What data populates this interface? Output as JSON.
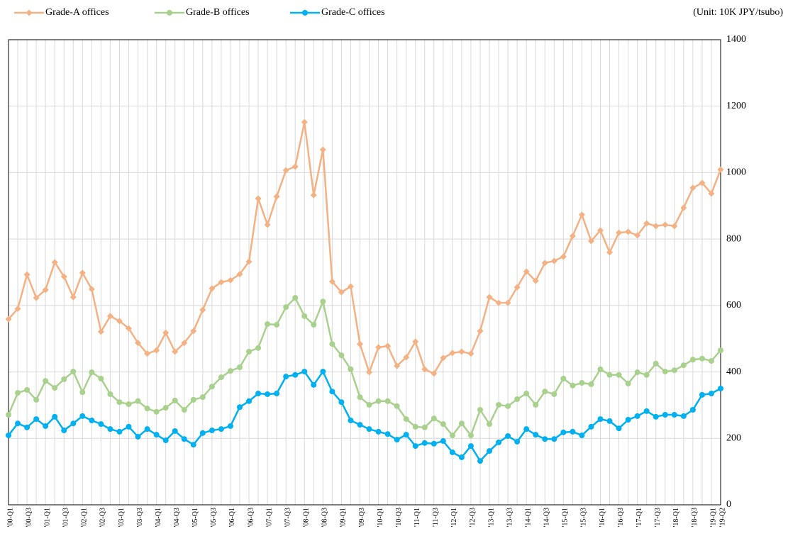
{
  "chart_data": {
    "type": "line",
    "unit_note": "(Unit: 10K JPY/tsubo)",
    "categories": [
      "'00-Q1",
      null,
      "'00-Q3",
      null,
      "'01-Q1",
      null,
      "'01-Q3",
      null,
      "'02-Q1",
      null,
      "'02-Q3",
      null,
      "'03-Q1",
      null,
      "'03-Q3",
      null,
      "'04-Q1",
      null,
      "'04-Q3",
      null,
      "'05-Q1",
      null,
      "'05-Q3",
      null,
      "'06-Q1",
      null,
      "'06-Q3",
      null,
      "'07-Q1",
      null,
      "'07-Q3",
      null,
      "'08-Q1",
      null,
      "'08-Q3",
      null,
      "'09-Q1",
      null,
      "'09-Q3",
      null,
      "'10-Q1",
      null,
      "'10-Q3",
      null,
      "'11-Q1",
      null,
      "'11-Q3",
      null,
      "'12-Q1",
      null,
      "'12-Q3",
      null,
      "'13-Q1",
      null,
      "'13-Q3",
      null,
      "'14-Q1",
      null,
      "'14-Q3",
      null,
      "'15-Q1",
      null,
      "'15-Q3",
      null,
      "'16-Q1",
      null,
      "'16-Q3",
      null,
      "'17-Q1",
      null,
      "'17-Q3",
      null,
      "'18-Q1",
      null,
      "'18-Q3",
      null,
      "'19-Q1",
      "'19-Q2"
    ],
    "series": [
      {
        "name": "Grade-A offices",
        "color": "#f4b183",
        "marker": "diamond",
        "values": [
          559,
          590,
          693,
          623,
          647,
          730,
          687,
          625,
          698,
          649,
          521,
          568,
          553,
          531,
          487,
          455,
          465,
          518,
          461,
          487,
          523,
          587,
          651,
          670,
          676,
          694,
          732,
          922,
          843,
          928,
          1007,
          1018,
          1152,
          932,
          1069,
          672,
          640,
          657,
          484,
          399,
          474,
          478,
          418,
          444,
          491,
          408,
          395,
          442,
          457,
          461,
          455,
          523,
          625,
          608,
          608,
          655,
          702,
          674,
          728,
          734,
          747,
          809,
          873,
          794,
          826,
          760,
          819,
          822,
          811,
          847,
          839,
          843,
          839,
          894,
          954,
          969,
          937,
          1009
        ]
      },
      {
        "name": "Grade-B offices",
        "color": "#a9d18e",
        "marker": "circle",
        "values": [
          271,
          337,
          346,
          316,
          373,
          352,
          378,
          401,
          339,
          399,
          380,
          333,
          309,
          303,
          312,
          290,
          280,
          292,
          314,
          286,
          316,
          324,
          356,
          384,
          403,
          414,
          461,
          472,
          544,
          542,
          595,
          623,
          568,
          542,
          612,
          484,
          450,
          408,
          324,
          301,
          312,
          312,
          297,
          258,
          235,
          233,
          260,
          243,
          209,
          245,
          209,
          286,
          243,
          301,
          297,
          318,
          335,
          301,
          341,
          333,
          380,
          359,
          367,
          363,
          408,
          391,
          391,
          365,
          399,
          391,
          425,
          401,
          405,
          420,
          437,
          440,
          433,
          465
        ]
      },
      {
        "name": "Grade-C offices",
        "color": "#00b0f0",
        "marker": "circle",
        "values": [
          209,
          245,
          233,
          258,
          237,
          265,
          224,
          245,
          267,
          254,
          243,
          228,
          220,
          235,
          205,
          228,
          211,
          194,
          222,
          198,
          181,
          216,
          224,
          228,
          237,
          294,
          312,
          335,
          333,
          335,
          386,
          391,
          401,
          361,
          401,
          341,
          309,
          254,
          241,
          228,
          220,
          213,
          196,
          211,
          177,
          186,
          184,
          192,
          158,
          143,
          177,
          132,
          162,
          188,
          207,
          190,
          228,
          211,
          198,
          198,
          218,
          220,
          209,
          235,
          258,
          252,
          230,
          256,
          267,
          282,
          265,
          271,
          271,
          267,
          286,
          331,
          335,
          350
        ]
      }
    ],
    "ylim": [
      0,
      1400
    ],
    "yticks": [
      0,
      200,
      400,
      600,
      800,
      1000,
      1200,
      1400
    ],
    "grid": true,
    "legend": "top"
  }
}
